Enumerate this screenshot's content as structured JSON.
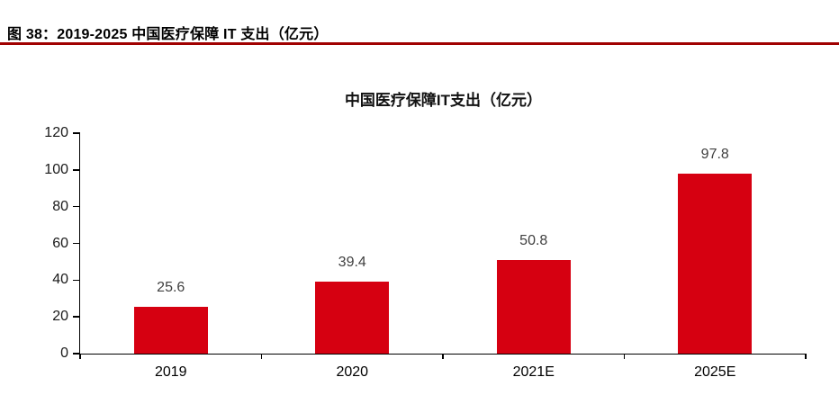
{
  "figure": {
    "caption": "图 38：2019-2025 中国医疗保障 IT 支出（亿元）"
  },
  "chart_data": {
    "type": "bar",
    "title": "中国医疗保障IT支出（亿元）",
    "categories": [
      "2019",
      "2020",
      "2021E",
      "2025E"
    ],
    "values": [
      25.6,
      39.4,
      50.8,
      97.8
    ],
    "value_labels": [
      "25.6",
      "39.4",
      "50.8",
      "97.8"
    ],
    "xlabel": "",
    "ylabel": "",
    "ylim": [
      0,
      120
    ],
    "yticks": [
      0,
      20,
      40,
      60,
      80,
      100,
      120
    ],
    "grid": false,
    "legend_position": "none",
    "colors": {
      "bar": "#d60011",
      "caption_rule": "#a00000",
      "axis": "#000000",
      "data_label": "#404040"
    }
  }
}
